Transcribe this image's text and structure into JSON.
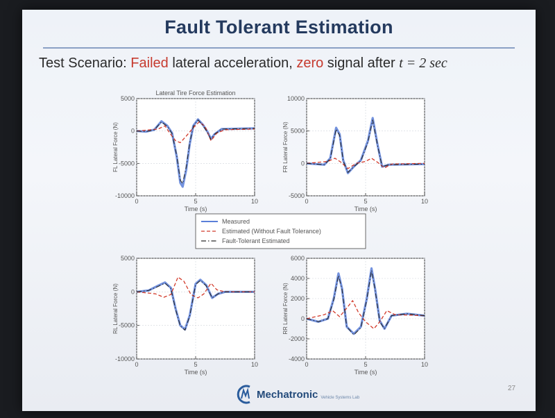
{
  "slide": {
    "title": "Fault Tolerant Estimation",
    "subtitle_parts": [
      {
        "text": "Test Scenario: ",
        "color": "#2a2a2a"
      },
      {
        "text": "Failed",
        "color": "#c63a2e"
      },
      {
        "text": " lateral acceleration, ",
        "color": "#2a2a2a"
      },
      {
        "text": "zero",
        "color": "#c63a2e"
      },
      {
        "text": " signal after ",
        "color": "#2a2a2a"
      },
      {
        "text": "t = 2 sec",
        "color": "#2a2a2a",
        "math": true
      }
    ],
    "logo": {
      "text": "Mechatronic",
      "sub": "Vehicle Systems Lab"
    },
    "page_number": "27"
  },
  "legend": {
    "items": [
      {
        "label": "Measured",
        "color": "#5a7fd8",
        "style": "solid"
      },
      {
        "label": "Estimated (Without Fault Tolerance)",
        "color": "#d23a2a",
        "style": "dashed"
      },
      {
        "label": "Fault-Tolerant Estimated",
        "color": "#2a2a2a",
        "style": "dashdot"
      }
    ]
  },
  "chart_data": [
    {
      "type": "line",
      "id": "fl",
      "title": "Lateral Tire Force Estimation",
      "xlabel": "Time (s)",
      "ylabel": "FL Lateral Force (N)",
      "xlim": [
        0,
        10
      ],
      "ylim": [
        -10000,
        5000
      ],
      "xticks": [
        0,
        5,
        10
      ],
      "yticks": [
        5000,
        0,
        -5000,
        -10000
      ],
      "ytick_labels": [
        "5000",
        "0",
        "-5000",
        "-10000"
      ],
      "series": [
        {
          "values": [
            [
              0,
              0
            ],
            [
              0.8,
              -100
            ],
            [
              1.5,
              200
            ],
            [
              2.1,
              1500
            ],
            [
              2.6,
              800
            ],
            [
              3.0,
              -300
            ],
            [
              3.4,
              -4000
            ],
            [
              3.7,
              -8000
            ],
            [
              3.9,
              -8600
            ],
            [
              4.2,
              -6000
            ],
            [
              4.5,
              -2000
            ],
            [
              4.8,
              800
            ],
            [
              5.2,
              1800
            ],
            [
              5.6,
              1000
            ],
            [
              6.0,
              -100
            ],
            [
              6.3,
              -1200
            ],
            [
              6.6,
              -500
            ],
            [
              7.2,
              300
            ],
            [
              10,
              400
            ]
          ],
          "color": "#5a7fd8",
          "style": "solid"
        },
        {
          "values": [
            [
              0,
              0
            ],
            [
              1.8,
              300
            ],
            [
              2.4,
              800
            ],
            [
              2.8,
              -300
            ],
            [
              3.3,
              -1500
            ],
            [
              3.7,
              -1800
            ],
            [
              4.2,
              -800
            ],
            [
              4.8,
              500
            ],
            [
              5.3,
              1400
            ],
            [
              5.8,
              700
            ],
            [
              6.3,
              -1500
            ],
            [
              6.8,
              -300
            ],
            [
              7.5,
              200
            ],
            [
              10,
              300
            ]
          ],
          "color": "#d23a2a",
          "style": "dashed"
        },
        {
          "values": [
            [
              0,
              0
            ],
            [
              0.8,
              -100
            ],
            [
              1.5,
              200
            ],
            [
              2.1,
              1400
            ],
            [
              2.6,
              700
            ],
            [
              3.0,
              -400
            ],
            [
              3.4,
              -3800
            ],
            [
              3.7,
              -7600
            ],
            [
              3.9,
              -8100
            ],
            [
              4.2,
              -5600
            ],
            [
              4.5,
              -1800
            ],
            [
              4.8,
              700
            ],
            [
              5.2,
              1700
            ],
            [
              5.6,
              900
            ],
            [
              6.0,
              -200
            ],
            [
              6.3,
              -1300
            ],
            [
              6.6,
              -500
            ],
            [
              7.2,
              300
            ],
            [
              10,
              400
            ]
          ],
          "color": "#2a2a2a",
          "style": "dashdot"
        }
      ]
    },
    {
      "type": "line",
      "id": "fr",
      "title": "",
      "xlabel": "Time (s)",
      "ylabel": "FR Lateral Force (N)",
      "xlim": [
        0,
        10
      ],
      "ylim": [
        -5000,
        10000
      ],
      "xticks": [
        0,
        5,
        10
      ],
      "yticks": [
        10000,
        5000,
        0,
        -5000
      ],
      "ytick_labels": [
        "10000",
        "5000",
        "0",
        "-5000"
      ],
      "series": [
        {
          "values": [
            [
              0,
              0
            ],
            [
              1.5,
              -200
            ],
            [
              2.0,
              800
            ],
            [
              2.5,
              5500
            ],
            [
              2.8,
              4500
            ],
            [
              3.1,
              500
            ],
            [
              3.5,
              -1500
            ],
            [
              4.0,
              -500
            ],
            [
              4.6,
              500
            ],
            [
              5.2,
              3500
            ],
            [
              5.6,
              7000
            ],
            [
              6.0,
              3000
            ],
            [
              6.4,
              -500
            ],
            [
              7.0,
              -200
            ],
            [
              10,
              -100
            ]
          ],
          "color": "#5a7fd8",
          "style": "solid"
        },
        {
          "values": [
            [
              0,
              0
            ],
            [
              1.8,
              300
            ],
            [
              2.4,
              800
            ],
            [
              2.9,
              200
            ],
            [
              3.5,
              -800
            ],
            [
              4.2,
              0
            ],
            [
              5.0,
              300
            ],
            [
              5.5,
              800
            ],
            [
              6.0,
              200
            ],
            [
              6.6,
              -700
            ],
            [
              7.2,
              -100
            ],
            [
              10,
              0
            ]
          ],
          "color": "#d23a2a",
          "style": "dashed"
        },
        {
          "values": [
            [
              0,
              0
            ],
            [
              1.5,
              -200
            ],
            [
              2.0,
              700
            ],
            [
              2.5,
              5300
            ],
            [
              2.8,
              4300
            ],
            [
              3.1,
              400
            ],
            [
              3.5,
              -1400
            ],
            [
              4.0,
              -500
            ],
            [
              4.6,
              400
            ],
            [
              5.2,
              3300
            ],
            [
              5.6,
              6700
            ],
            [
              6.0,
              2900
            ],
            [
              6.4,
              -500
            ],
            [
              7.0,
              -200
            ],
            [
              10,
              -100
            ]
          ],
          "color": "#2a2a2a",
          "style": "dashdot"
        }
      ]
    },
    {
      "type": "line",
      "id": "rl",
      "title": "",
      "xlabel": "Time (s)",
      "ylabel": "RL Lateral Force (N)",
      "xlim": [
        0,
        10
      ],
      "ylim": [
        -10000,
        5000
      ],
      "xticks": [
        0,
        5,
        10
      ],
      "yticks": [
        5000,
        0,
        -5000,
        -10000
      ],
      "ytick_labels": [
        "5000",
        "0",
        "-5000",
        "-10000"
      ],
      "series": [
        {
          "values": [
            [
              0,
              0
            ],
            [
              1.0,
              200
            ],
            [
              1.8,
              900
            ],
            [
              2.4,
              1400
            ],
            [
              2.9,
              600
            ],
            [
              3.3,
              -2500
            ],
            [
              3.7,
              -5000
            ],
            [
              4.1,
              -5600
            ],
            [
              4.5,
              -3500
            ],
            [
              5.0,
              1200
            ],
            [
              5.4,
              1800
            ],
            [
              5.9,
              1000
            ],
            [
              6.4,
              -900
            ],
            [
              6.9,
              -300
            ],
            [
              7.5,
              0
            ],
            [
              10,
              0
            ]
          ],
          "color": "#5a7fd8",
          "style": "solid"
        },
        {
          "values": [
            [
              0,
              0
            ],
            [
              1.6,
              -300
            ],
            [
              2.3,
              -800
            ],
            [
              2.9,
              -400
            ],
            [
              3.5,
              2200
            ],
            [
              4.0,
              1600
            ],
            [
              4.6,
              -400
            ],
            [
              5.2,
              -900
            ],
            [
              5.7,
              -300
            ],
            [
              6.3,
              1300
            ],
            [
              6.8,
              300
            ],
            [
              7.5,
              0
            ],
            [
              10,
              0
            ]
          ],
          "color": "#d23a2a",
          "style": "dashed"
        },
        {
          "values": [
            [
              0,
              0
            ],
            [
              1.0,
              200
            ],
            [
              1.8,
              800
            ],
            [
              2.4,
              1300
            ],
            [
              2.9,
              500
            ],
            [
              3.3,
              -2600
            ],
            [
              3.7,
              -5100
            ],
            [
              4.1,
              -5700
            ],
            [
              4.5,
              -3600
            ],
            [
              5.0,
              1100
            ],
            [
              5.4,
              1700
            ],
            [
              5.9,
              900
            ],
            [
              6.4,
              -900
            ],
            [
              6.9,
              -300
            ],
            [
              7.5,
              0
            ],
            [
              10,
              0
            ]
          ],
          "color": "#2a2a2a",
          "style": "dashdot"
        }
      ]
    },
    {
      "type": "line",
      "id": "rr",
      "title": "",
      "xlabel": "Time (s)",
      "ylabel": "RR Lateral Force (N)",
      "xlim": [
        0,
        10
      ],
      "ylim": [
        -4000,
        6000
      ],
      "xticks": [
        0,
        5,
        10
      ],
      "yticks": [
        6000,
        4000,
        2000,
        0,
        -2000,
        -4000
      ],
      "ytick_labels": [
        "6000",
        "4000",
        "2000",
        "0",
        "-2000",
        "-4000"
      ],
      "series": [
        {
          "values": [
            [
              0,
              0
            ],
            [
              1.0,
              -300
            ],
            [
              1.8,
              0
            ],
            [
              2.3,
              2000
            ],
            [
              2.7,
              4500
            ],
            [
              3.0,
              3000
            ],
            [
              3.4,
              -800
            ],
            [
              4.0,
              -1500
            ],
            [
              4.6,
              -800
            ],
            [
              5.1,
              2000
            ],
            [
              5.5,
              5000
            ],
            [
              5.8,
              3000
            ],
            [
              6.2,
              -200
            ],
            [
              6.6,
              -1000
            ],
            [
              7.2,
              300
            ],
            [
              8.5,
              500
            ],
            [
              10,
              300
            ]
          ],
          "color": "#5a7fd8",
          "style": "solid"
        },
        {
          "values": [
            [
              0,
              0
            ],
            [
              1.5,
              400
            ],
            [
              2.2,
              800
            ],
            [
              2.8,
              200
            ],
            [
              3.5,
              1200
            ],
            [
              3.9,
              1800
            ],
            [
              4.4,
              600
            ],
            [
              5.0,
              -300
            ],
            [
              5.7,
              -1000
            ],
            [
              6.2,
              -300
            ],
            [
              6.8,
              800
            ],
            [
              7.5,
              400
            ],
            [
              10,
              300
            ]
          ],
          "color": "#d23a2a",
          "style": "dashed"
        },
        {
          "values": [
            [
              0,
              0
            ],
            [
              1.0,
              -300
            ],
            [
              1.8,
              0
            ],
            [
              2.3,
              1900
            ],
            [
              2.7,
              4300
            ],
            [
              3.0,
              2900
            ],
            [
              3.4,
              -800
            ],
            [
              4.0,
              -1600
            ],
            [
              4.6,
              -900
            ],
            [
              5.1,
              1900
            ],
            [
              5.5,
              4800
            ],
            [
              5.8,
              2900
            ],
            [
              6.2,
              -300
            ],
            [
              6.6,
              -1000
            ],
            [
              7.2,
              300
            ],
            [
              8.5,
              500
            ],
            [
              10,
              300
            ]
          ],
          "color": "#2a2a2a",
          "style": "dashdot"
        }
      ]
    }
  ]
}
